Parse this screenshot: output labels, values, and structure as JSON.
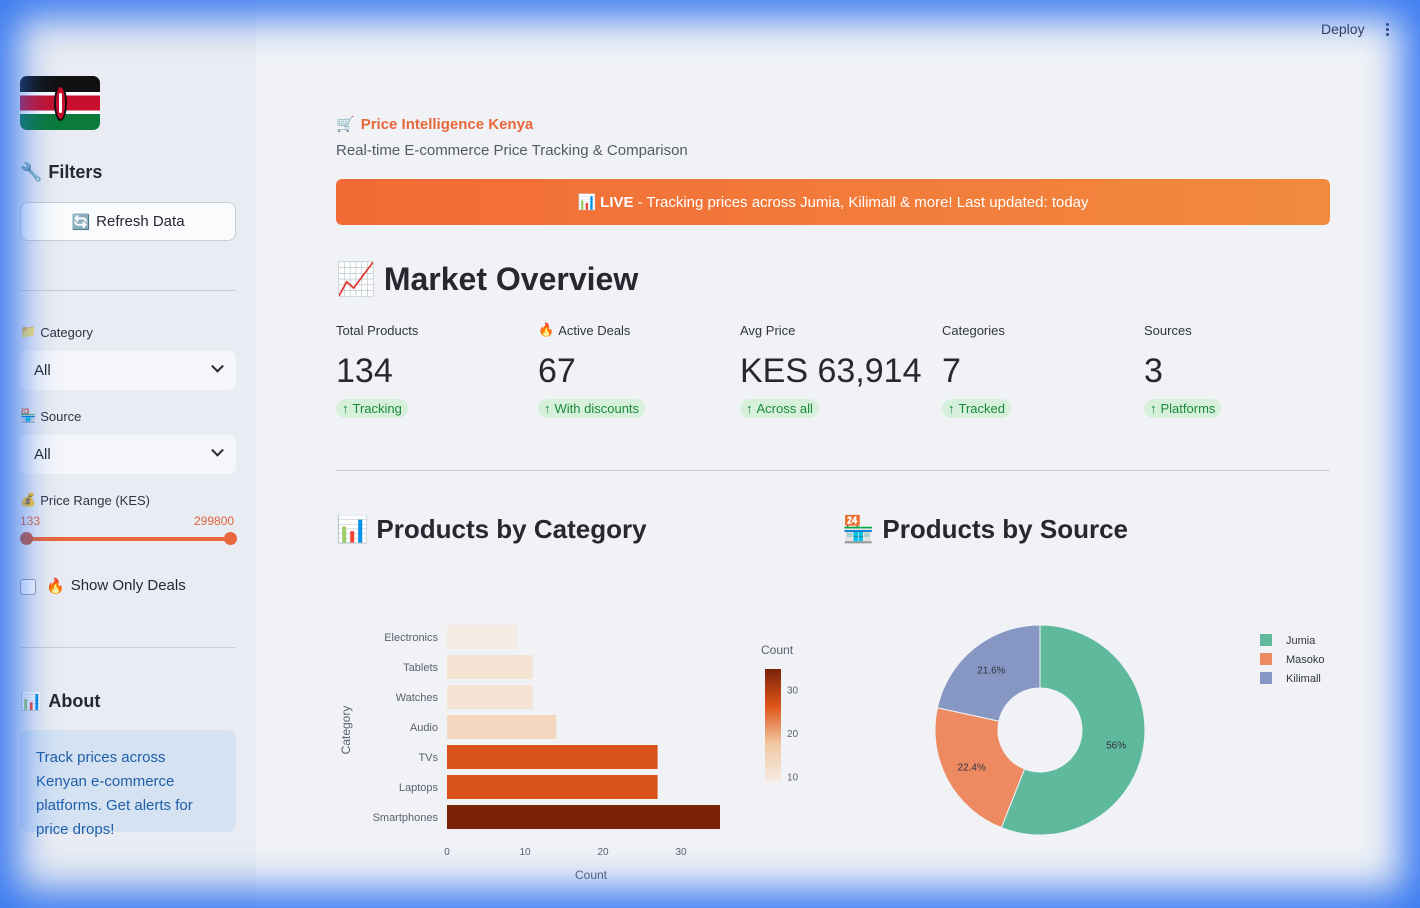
{
  "header": {
    "deploy_label": "Deploy"
  },
  "sidebar": {
    "filters_title": "Filters",
    "refresh_label": "Refresh Data",
    "category": {
      "label": "Category",
      "value": "All"
    },
    "source": {
      "label": "Source",
      "value": "All"
    },
    "price_range": {
      "label": "Price Range (KES)",
      "min": "133",
      "max": "299800"
    },
    "deals_checkbox": {
      "label": "Show Only Deals",
      "checked": false
    },
    "about_title": "About",
    "about_text": "Track prices across Kenyan e-commerce platforms. Get alerts for price drops!"
  },
  "main": {
    "app_title": "Price Intelligence Kenya",
    "app_subtitle": "Real-time E-commerce Price Tracking & Comparison",
    "banner_live": "LIVE",
    "banner_text": "- Tracking prices across Jumia, Kilimall & more! Last updated: today",
    "overview_title": "Market Overview",
    "metrics": [
      {
        "label": "Total Products",
        "value": "134",
        "delta": "Tracking"
      },
      {
        "label": "Active Deals",
        "value": "67",
        "delta": "With discounts"
      },
      {
        "label": "Avg Price",
        "value": "KES 63,914",
        "delta": "Across all"
      },
      {
        "label": "Categories",
        "value": "7",
        "delta": "Tracked"
      },
      {
        "label": "Sources",
        "value": "3",
        "delta": "Platforms"
      }
    ],
    "category_title": "Products by Category",
    "source_title": "Products by Source"
  },
  "chart_data": [
    {
      "type": "bar",
      "orientation": "horizontal",
      "categories": [
        "Electronics",
        "Tablets",
        "Watches",
        "Audio",
        "TVs",
        "Laptops",
        "Smartphones"
      ],
      "values": [
        9,
        11,
        11,
        14,
        27,
        27,
        35
      ],
      "xlabel": "Count",
      "ylabel": "Category",
      "xticks": [
        "0",
        "10",
        "20",
        "30"
      ],
      "xlim": [
        0,
        35
      ],
      "colorbar": {
        "title": "Count",
        "ticks": [
          "30",
          "20",
          "10"
        ],
        "range": [
          9,
          35
        ]
      },
      "colorscale": [
        "#f6ebe3",
        "#f0c9a4",
        "#e0561a",
        "#7a2208"
      ]
    },
    {
      "type": "pie",
      "hole": true,
      "labels": [
        "Jumia",
        "Masoko",
        "Kilimall"
      ],
      "values": [
        56,
        22.4,
        21.6
      ],
      "value_labels": [
        "56%",
        "22.4%",
        "21.6%"
      ],
      "colors": [
        "#5fb99c",
        "#ee8a62",
        "#8797c3"
      ],
      "legend": "right"
    }
  ]
}
